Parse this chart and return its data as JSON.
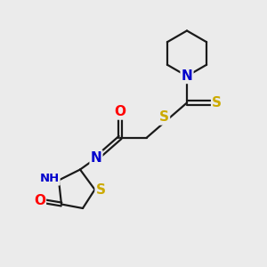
{
  "bg_color": "#ebebeb",
  "atom_colors": {
    "C": "#000000",
    "N": "#0000cc",
    "O": "#ff0000",
    "S": "#ccaa00",
    "H": "#008080"
  },
  "bond_color": "#1a1a1a",
  "bond_width": 1.6,
  "font_size_atoms": 11,
  "font_size_small": 9.5
}
